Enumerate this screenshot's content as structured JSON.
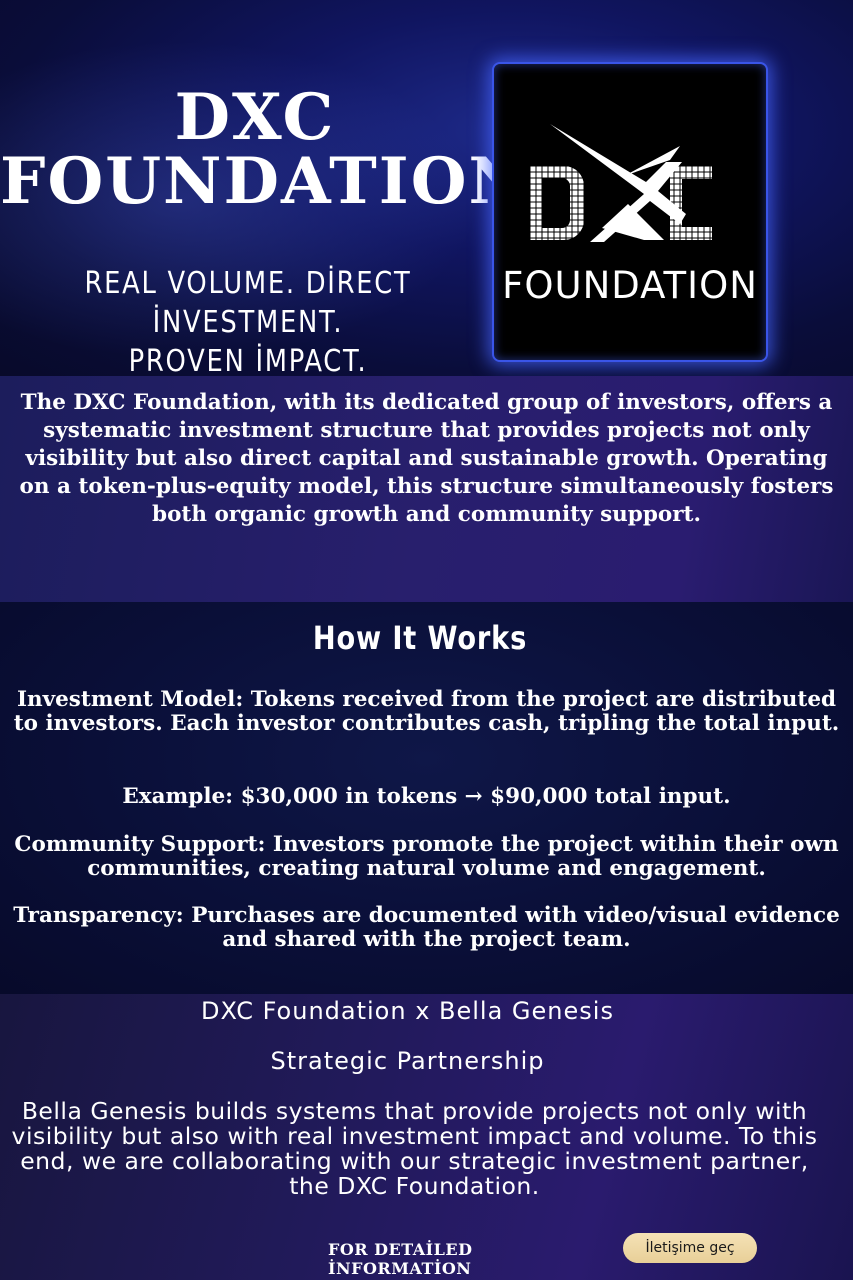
{
  "hero": {
    "title_line1": "DXC",
    "title_line2": "FOUNDATION",
    "tagline_line1": "REAL VOLUME. DİRECT İNVESTMENT.",
    "tagline_line2": "PROVEN İMPACT."
  },
  "logo": {
    "letters": "DXC",
    "word": "FOUNDATION"
  },
  "intro": {
    "text": "The DXC Foundation, with its dedicated group of investors, offers a systematic investment structure that provides projects not only visibility but also direct capital and sustainable growth. Operating on a token-plus-equity model, this structure simultaneously fosters both organic growth and community support."
  },
  "how": {
    "heading": "How It Works",
    "investment_model": "Investment Model: Tokens received from the project are distributed to investors. Each investor contributes cash, tripling the total input.",
    "example": "Example: $30,000 in tokens → $90,000 total input.",
    "community": "Community Support: Investors promote the project within their own communities, creating natural volume and engagement.",
    "transparency": "Transparency: Purchases are documented with video/visual evidence and shared with the project team."
  },
  "partner": {
    "title": "DXC Foundation x Bella Genesis",
    "subtitle": "Strategic Partnership",
    "body": "Bella Genesis builds systems that provide projects not only with visibility but also with real investment impact and volume. To this end, we are collaborating with our strategic investment partner, the DXC Foundation.",
    "footer_label": "FOR DETAİLED İNFORMATİON",
    "contact_button": "İletişime geç"
  },
  "colors": {
    "frame_glow": "#3a55e8",
    "button": "#f0dcab"
  }
}
